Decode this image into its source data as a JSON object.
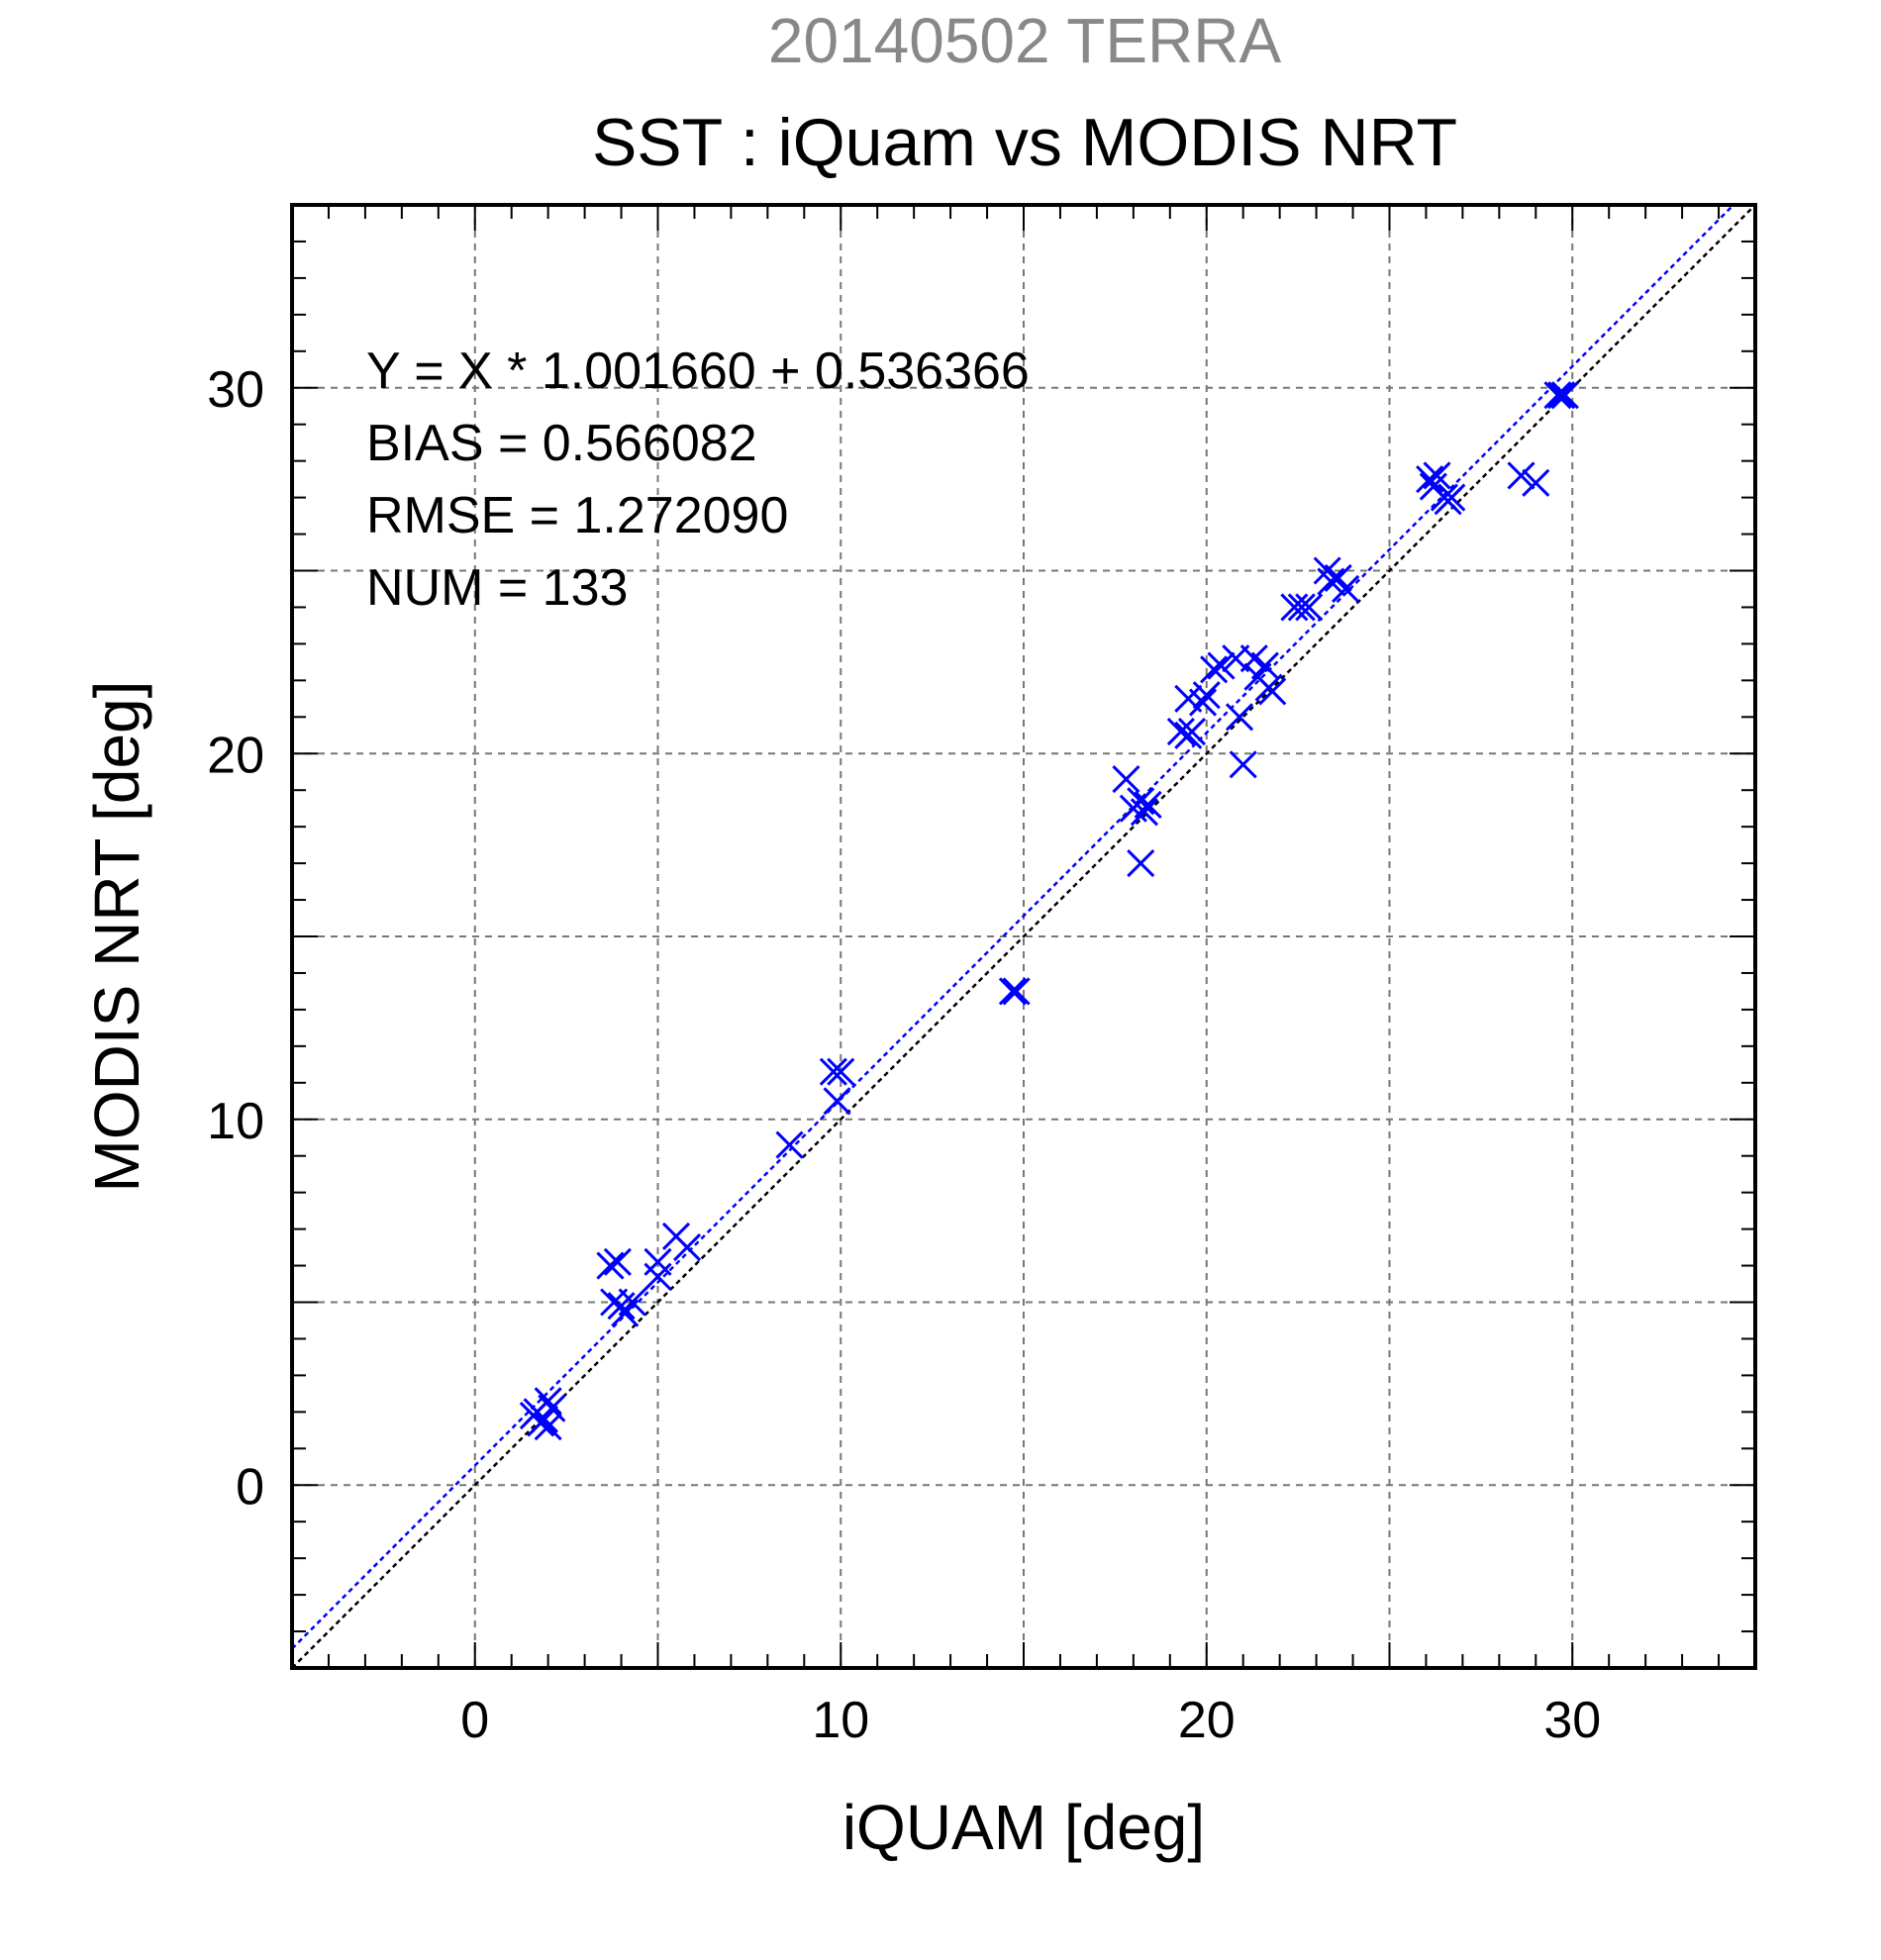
{
  "chart_data": {
    "type": "scatter",
    "supertitle": "20140502 TERRA",
    "title": "SST : iQuam vs MODIS NRT",
    "xlabel": "iQUAM [deg]",
    "ylabel": "MODIS NRT [deg]",
    "xlim": [
      -5,
      35
    ],
    "ylim": [
      -5,
      35
    ],
    "xticks": [
      0,
      10,
      20,
      30
    ],
    "yticks": [
      0,
      10,
      20,
      30
    ],
    "xtick_labels": [
      "0",
      "10",
      "20",
      "30"
    ],
    "ytick_labels": [
      "0",
      "10",
      "20",
      "30"
    ],
    "grid_step": 5,
    "minor_step": 1,
    "grid": true,
    "stats": {
      "equation": "Y = X * 1.001660 + 0.536366",
      "bias": "BIAS = 0.566082",
      "rmse": "RMSE = 1.272090",
      "num": "NUM = 133"
    },
    "fit_line": {
      "slope": 1.00166,
      "intercept": 0.536366,
      "color": "#0000ff"
    },
    "identity_line": {
      "slope": 1,
      "intercept": 0,
      "color": "#000000"
    },
    "marker_color": "#0000ff",
    "points": [
      [
        1.6,
        1.9
      ],
      [
        1.8,
        1.7
      ],
      [
        1.9,
        1.8
      ],
      [
        2.0,
        2.3
      ],
      [
        2.1,
        2.1
      ],
      [
        1.7,
        2.0
      ],
      [
        2.0,
        1.6
      ],
      [
        3.7,
        6.0
      ],
      [
        3.9,
        6.1
      ],
      [
        3.8,
        5.0
      ],
      [
        4.0,
        4.9
      ],
      [
        4.1,
        4.7
      ],
      [
        4.3,
        5.0
      ],
      [
        5.0,
        6.1
      ],
      [
        5.0,
        5.7
      ],
      [
        5.5,
        6.8
      ],
      [
        5.8,
        6.5
      ],
      [
        8.6,
        9.3
      ],
      [
        9.8,
        11.3
      ],
      [
        10.0,
        11.3
      ],
      [
        9.9,
        10.5
      ],
      [
        14.7,
        13.5
      ],
      [
        14.8,
        13.5
      ],
      [
        17.8,
        19.3
      ],
      [
        18.0,
        18.5
      ],
      [
        18.2,
        18.7
      ],
      [
        18.3,
        18.4
      ],
      [
        18.4,
        18.6
      ],
      [
        18.2,
        17.0
      ],
      [
        19.3,
        20.6
      ],
      [
        19.5,
        20.5
      ],
      [
        19.6,
        20.6
      ],
      [
        19.5,
        21.5
      ],
      [
        19.9,
        21.4
      ],
      [
        20.0,
        21.6
      ],
      [
        20.2,
        22.3
      ],
      [
        20.4,
        22.4
      ],
      [
        20.8,
        22.6
      ],
      [
        20.9,
        21.0
      ],
      [
        21.0,
        19.7
      ],
      [
        21.3,
        22.6
      ],
      [
        21.4,
        22.1
      ],
      [
        21.6,
        22.4
      ],
      [
        21.8,
        21.7
      ],
      [
        21.7,
        21.8
      ],
      [
        22.4,
        24.0
      ],
      [
        22.6,
        24.0
      ],
      [
        22.8,
        24.0
      ],
      [
        23.3,
        25.0
      ],
      [
        23.4,
        24.7
      ],
      [
        23.6,
        24.8
      ],
      [
        23.8,
        24.5
      ],
      [
        26.1,
        27.5
      ],
      [
        26.2,
        27.3
      ],
      [
        26.3,
        27.6
      ],
      [
        26.5,
        27.0
      ],
      [
        26.6,
        26.9
      ],
      [
        26.7,
        27.0
      ],
      [
        28.6,
        27.6
      ],
      [
        29.0,
        27.4
      ],
      [
        29.6,
        29.8
      ],
      [
        29.8,
        29.8
      ],
      [
        29.7,
        29.8
      ]
    ]
  }
}
